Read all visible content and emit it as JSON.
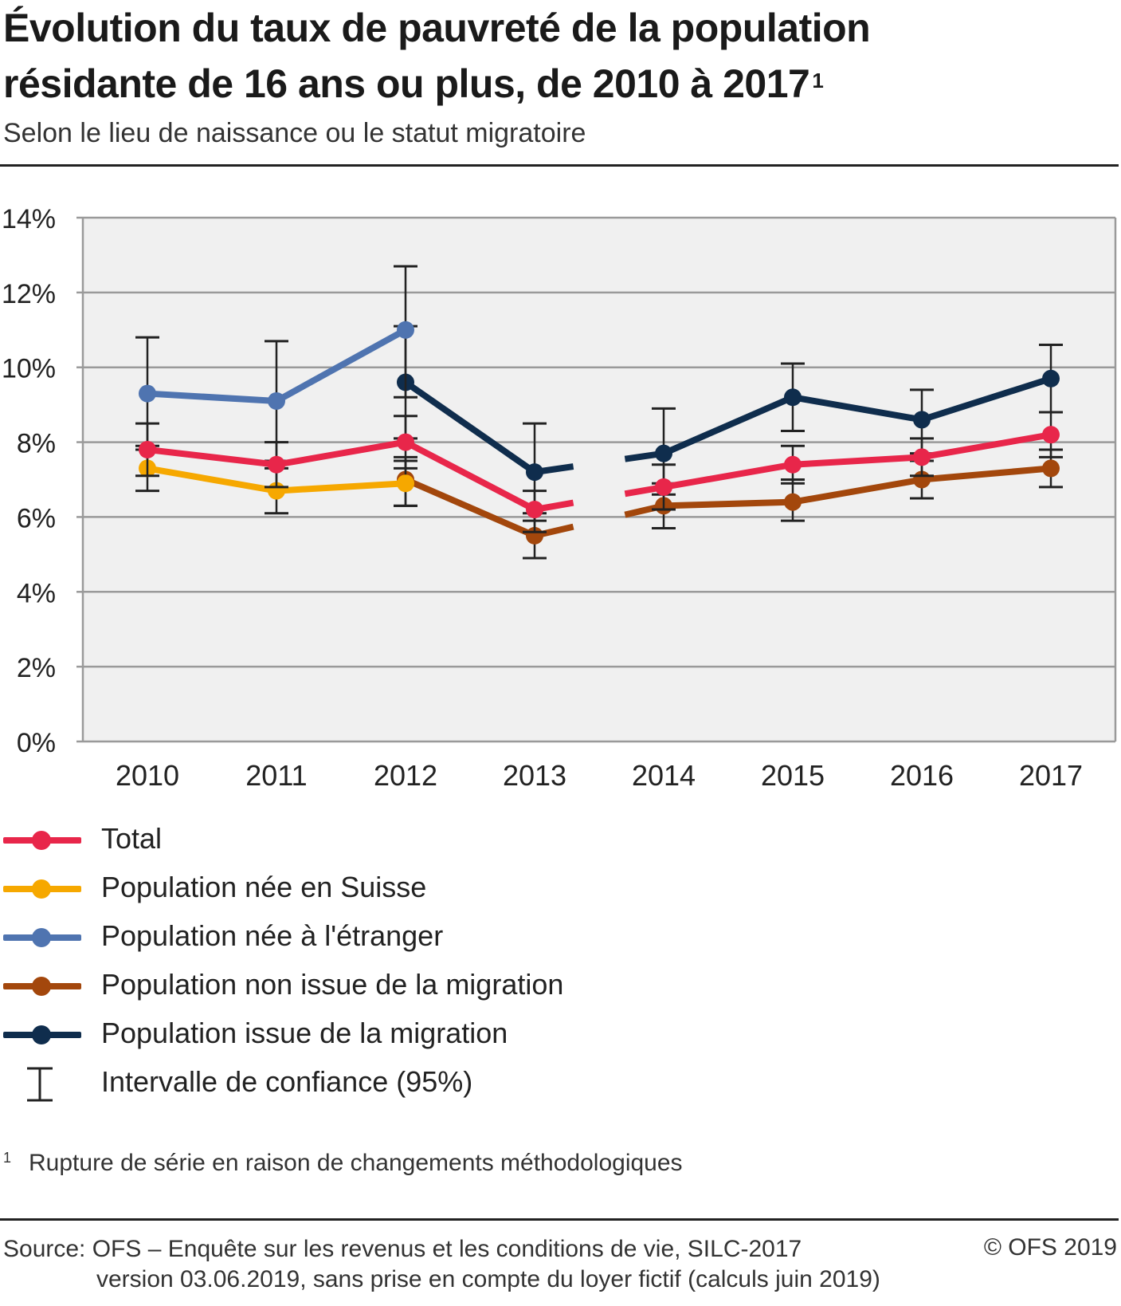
{
  "header": {
    "title_line1": "Évolution du taux de pauvreté de la population",
    "title_line2": "résidante de 16 ans ou plus, de 2010 à 2017",
    "title_sup": "1",
    "subtitle": "Selon le lieu de naissance ou le statut migratoire"
  },
  "chart_data": {
    "type": "line",
    "title": "Évolution du taux de pauvreté de la population résidante de 16 ans ou plus, de 2010 à 2017",
    "subtitle": "Selon le lieu de naissance ou le statut migratoire",
    "x": [
      "2010",
      "2011",
      "2012",
      "2013",
      "2014",
      "2015",
      "2016",
      "2017"
    ],
    "ylim": [
      0,
      14
    ],
    "yticks": [
      "0%",
      "2%",
      "4%",
      "6%",
      "8%",
      "10%",
      "12%",
      "14%"
    ],
    "grid": true,
    "background": "#f0f0f0",
    "series_break": "between 2013 and 2014",
    "series": [
      {
        "name": "Total",
        "color": "#e8264a",
        "values": [
          7.8,
          7.4,
          8.0,
          6.2,
          6.8,
          7.4,
          7.6,
          8.2
        ],
        "ci": [
          [
            7.1,
            8.5
          ],
          [
            6.8,
            8.0
          ],
          [
            7.3,
            8.7
          ],
          [
            5.6,
            6.7
          ],
          [
            6.2,
            7.4
          ],
          [
            6.9,
            7.9
          ],
          [
            7.1,
            8.1
          ],
          [
            7.6,
            8.8
          ]
        ]
      },
      {
        "name": "Population née en Suisse",
        "color": "#f6a800",
        "values": [
          7.3,
          6.7,
          6.9,
          null,
          null,
          null,
          null,
          null
        ],
        "ci": [
          [
            6.7,
            7.9
          ],
          [
            6.1,
            7.3
          ],
          [
            6.3,
            7.5
          ],
          null,
          null,
          null,
          null,
          null
        ]
      },
      {
        "name": "Population née à l'étranger",
        "color": "#4f74b0",
        "values": [
          9.3,
          9.1,
          11.0,
          null,
          null,
          null,
          null,
          null
        ],
        "ci": [
          [
            7.8,
            10.8
          ],
          [
            7.5,
            10.7
          ],
          [
            9.2,
            12.7
          ],
          null,
          null,
          null,
          null,
          null
        ]
      },
      {
        "name": "Population non issue de la migration",
        "color": "#a3470c",
        "values": [
          null,
          null,
          7.0,
          5.5,
          6.3,
          6.4,
          7.0,
          7.3
        ],
        "ci": [
          null,
          null,
          [
            6.3,
            7.6
          ],
          [
            4.9,
            6.1
          ],
          [
            5.7,
            6.9
          ],
          [
            5.9,
            7.0
          ],
          [
            6.5,
            7.5
          ],
          [
            6.8,
            7.8
          ]
        ]
      },
      {
        "name": "Population issue de la migration",
        "color": "#0f2d4d",
        "values": [
          null,
          null,
          9.6,
          7.2,
          7.7,
          9.2,
          8.6,
          9.7
        ],
        "ci": [
          null,
          null,
          [
            8.1,
            11.1
          ],
          [
            5.9,
            8.5
          ],
          [
            6.6,
            8.9
          ],
          [
            8.3,
            10.1
          ],
          [
            7.7,
            9.4
          ],
          [
            8.8,
            10.6
          ]
        ]
      }
    ]
  },
  "legend": {
    "items": [
      {
        "label": "Total",
        "color": "#e8264a"
      },
      {
        "label": "Population née en Suisse",
        "color": "#f6a800"
      },
      {
        "label": "Population née à l'étranger",
        "color": "#4f74b0"
      },
      {
        "label": "Population non issue de la migration",
        "color": "#a3470c"
      },
      {
        "label": "Population issue de la migration",
        "color": "#0f2d4d"
      }
    ],
    "ci_label": "Intervalle de confiance (95%)"
  },
  "footnote": {
    "mark": "1",
    "text": "Rupture de série en raison de changements méthodologiques"
  },
  "source": {
    "line1": "Source: OFS – Enquête sur les revenus et les conditions de vie, SILC-2017",
    "line2": "version 03.06.2019, sans prise en compte du loyer fictif (calculs juin 2019)",
    "copyright": "© OFS 2019"
  }
}
